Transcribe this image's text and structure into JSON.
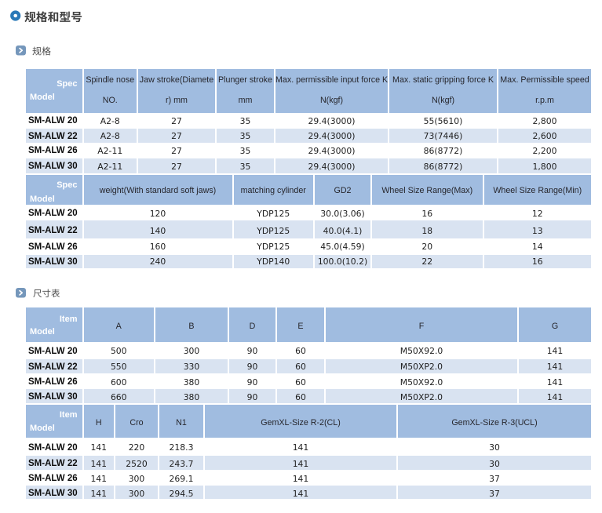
{
  "page_title": "规格和型号",
  "colors": {
    "header_bg": "#a0bce0",
    "row_even_bg": "#d9e3f1",
    "row_odd_bg": "#ffffff",
    "title_icon_blue": "#2a79b8",
    "section_icon_bg": "#7597bb",
    "header_text": "#2c2c34",
    "cell_text": "#222222"
  },
  "sections": [
    {
      "title": "规格"
    },
    {
      "title": "尺寸表"
    }
  ],
  "spec_table": {
    "band1": {
      "corner": {
        "top": "Spec",
        "bottom": "Model"
      },
      "headers": [
        [
          "Spindle nose",
          "NO."
        ],
        [
          "Jaw stroke(Diamete",
          "r) mm"
        ],
        [
          "Plunger stroke",
          "mm"
        ],
        [
          "Max. permissible input force K",
          "N(kgf)"
        ],
        [
          "Max. static gripping force K",
          "N(kgf)"
        ],
        [
          "Max. Permissible speed",
          "r.p.m"
        ]
      ],
      "rows": [
        {
          "model": "SM-ALW 20",
          "values": [
            "A2-8",
            "27",
            "35",
            "29.4(3000)",
            "55(5610)",
            "2,800"
          ]
        },
        {
          "model": "SM-ALW 22",
          "values": [
            "A2-8",
            "27",
            "35",
            "29.4(3000)",
            "73(7446)",
            "2,600"
          ]
        },
        {
          "model": "SM-ALW 26",
          "values": [
            "A2-11",
            "27",
            "35",
            "29.4(3000)",
            "86(8772)",
            "2,200"
          ]
        },
        {
          "model": "SM-ALW 30",
          "values": [
            "A2-11",
            "27",
            "35",
            "29.4(3000)",
            "86(8772)",
            "1,800"
          ]
        }
      ]
    },
    "band2": {
      "corner": {
        "top": "Spec",
        "bottom": "Model"
      },
      "headers": [
        [
          "weight(With standard soft jaws)"
        ],
        [
          "matching cylinder"
        ],
        [
          "GD2"
        ],
        [
          "Wheel Size Range(Max)"
        ],
        [
          "Wheel Size Range(Min)"
        ]
      ],
      "rows": [
        {
          "model": "SM-ALW 20",
          "values": [
            "120",
            "YDP125",
            "30.0(3.06)",
            "16",
            "12"
          ]
        },
        {
          "model": "SM-ALW 22",
          "values": [
            "140",
            "YDP125",
            "40.0(4.1)",
            "18",
            "13"
          ]
        },
        {
          "model": "SM-ALW 26",
          "values": [
            "160",
            "YDP125",
            "45.0(4.59)",
            "20",
            "14"
          ]
        },
        {
          "model": "SM-ALW 30",
          "values": [
            "240",
            "YDP140",
            "100.0(10.2)",
            "22",
            "16"
          ]
        }
      ]
    }
  },
  "dimension_table": {
    "band1": {
      "corner": {
        "top": "Item",
        "bottom": "Model"
      },
      "headers": [
        [
          "A"
        ],
        [
          "B"
        ],
        [
          "D"
        ],
        [
          "E"
        ],
        [
          "F"
        ],
        [
          "G"
        ]
      ],
      "rows": [
        {
          "model": "SM-ALW 20",
          "values": [
            "500",
            "300",
            "90",
            "60",
            "M50X92.0",
            "141"
          ]
        },
        {
          "model": "SM-ALW 22",
          "values": [
            "550",
            "330",
            "90",
            "60",
            "M50XP2.0",
            "141"
          ]
        },
        {
          "model": "SM-ALW 26",
          "values": [
            "600",
            "380",
            "90",
            "60",
            "M50X92.0",
            "141"
          ]
        },
        {
          "model": "SM-ALW 30",
          "values": [
            "660",
            "380",
            "90",
            "60",
            "M50XP2.0",
            "141"
          ]
        }
      ]
    },
    "band2": {
      "corner": {
        "top": "Item",
        "bottom": "Model"
      },
      "headers": [
        [
          "H"
        ],
        [
          "Cro"
        ],
        [
          "N1"
        ],
        [
          "GemXL-Size R-2(CL)"
        ],
        [
          "GemXL-Size R-3(UCL)"
        ]
      ],
      "rows": [
        {
          "model": "SM-ALW 20",
          "values": [
            "141",
            "220",
            "218.3",
            "141",
            "30"
          ]
        },
        {
          "model": "SM-ALW 22",
          "values": [
            "141",
            "2520",
            "243.7",
            "141",
            "30"
          ]
        },
        {
          "model": "SM-ALW 26",
          "values": [
            "141",
            "300",
            "269.1",
            "141",
            "37"
          ]
        },
        {
          "model": "SM-ALW 30",
          "values": [
            "141",
            "300",
            "294.5",
            "141",
            "37"
          ]
        }
      ]
    }
  }
}
